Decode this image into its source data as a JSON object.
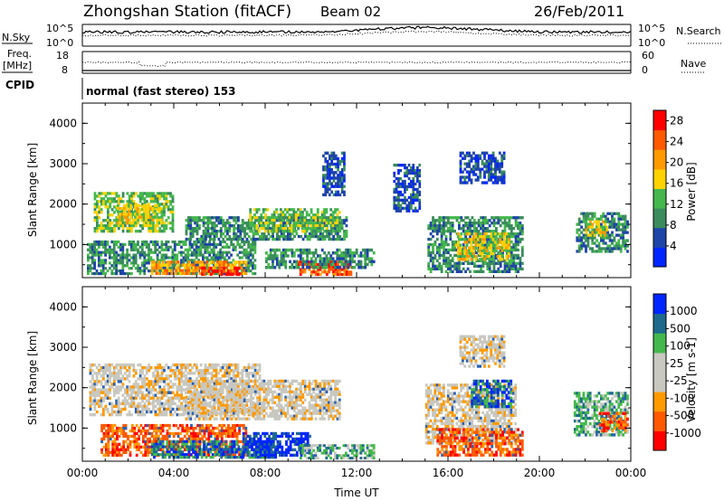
{
  "header": {
    "station": "Zhongshan Station (fitACF)",
    "beam": "Beam 02",
    "date": "26/Feb/2011"
  },
  "noise_panel": {
    "left_label": "N.Sky",
    "right_label": "N.Search",
    "left_ticks": [
      "10^5",
      "10^0"
    ],
    "right_ticks": [
      "10^5",
      "10^0"
    ]
  },
  "freq_panel": {
    "left_label_1": "Freq.",
    "left_label_2": "[MHz]",
    "right_label": "Nave",
    "left_ticks": [
      "18",
      "8"
    ],
    "right_ticks": [
      "60",
      "0"
    ]
  },
  "cpid": {
    "label": "CPID",
    "text": "normal (fast stereo) 153"
  },
  "colors": {
    "power": [
      "#0026ff",
      "#1e44a8",
      "#3a8c5c",
      "#44b84c",
      "#ffd200",
      "#ff9a00",
      "#ff5a00",
      "#ff0000"
    ],
    "velocity": [
      "#ff0000",
      "#ff5a00",
      "#ff9a00",
      "#c8c8c0",
      "#c8c8c0",
      "#44b84c",
      "#1e6a8c",
      "#0026ff"
    ],
    "velocity_extra": "#2a60b0"
  },
  "chart_data": [
    {
      "type": "heatmap",
      "quantity": "Power",
      "ylabel": "Slant Range [km]",
      "xlim": [
        0,
        24
      ],
      "ylim": [
        180,
        4500
      ],
      "y_ticks": [
        "1000",
        "2000",
        "3000",
        "4000"
      ],
      "colorbar": {
        "label": "Power [dB]",
        "ticks": [
          "4",
          "8",
          "12",
          "16",
          "20",
          "24",
          "28"
        ],
        "range": [
          0,
          30
        ]
      },
      "regions": [
        {
          "t0": 0.2,
          "t1": 7.6,
          "r0": 250,
          "r1": 1100,
          "level": 2
        },
        {
          "t0": 0.5,
          "t1": 4.0,
          "r0": 1300,
          "r1": 2300,
          "level": 3
        },
        {
          "t0": 1.5,
          "t1": 3.5,
          "r0": 1500,
          "r1": 2000,
          "level": 4
        },
        {
          "t0": 3.0,
          "t1": 7.2,
          "r0": 250,
          "r1": 600,
          "level": 5
        },
        {
          "t0": 5.2,
          "t1": 6.9,
          "r0": 230,
          "r1": 450,
          "level": 7
        },
        {
          "t0": 4.5,
          "t1": 11.6,
          "r0": 1100,
          "r1": 1700,
          "level": 2
        },
        {
          "t0": 7.3,
          "t1": 11.3,
          "r0": 1300,
          "r1": 1900,
          "level": 3
        },
        {
          "t0": 9.4,
          "t1": 11.8,
          "r0": 230,
          "r1": 600,
          "level": 6
        },
        {
          "t0": 8.0,
          "t1": 12.8,
          "r0": 400,
          "r1": 900,
          "level": 2
        },
        {
          "t0": 10.5,
          "t1": 11.5,
          "r0": 2200,
          "r1": 3300,
          "level": 1
        },
        {
          "t0": 15.1,
          "t1": 19.3,
          "r0": 300,
          "r1": 1700,
          "level": 2
        },
        {
          "t0": 16.3,
          "t1": 18.7,
          "r0": 600,
          "r1": 1300,
          "level": 4
        },
        {
          "t0": 16.5,
          "t1": 18.5,
          "r0": 2500,
          "r1": 3300,
          "level": 1
        },
        {
          "t0": 21.6,
          "t1": 23.9,
          "r0": 800,
          "r1": 1800,
          "level": 2
        },
        {
          "t0": 22.0,
          "t1": 23.0,
          "r0": 1200,
          "r1": 1600,
          "level": 4
        },
        {
          "t0": 13.6,
          "t1": 14.8,
          "r0": 1800,
          "r1": 3000,
          "level": 1
        }
      ]
    },
    {
      "type": "heatmap",
      "quantity": "Velocity",
      "ylabel": "Slant Range [km]",
      "xlabel": "Time UT",
      "xlim": [
        0,
        24
      ],
      "ylim": [
        180,
        4500
      ],
      "y_ticks": [
        "1000",
        "2000",
        "3000",
        "4000"
      ],
      "x_ticks": [
        "00:00",
        "04:00",
        "08:00",
        "12:00",
        "16:00",
        "20:00",
        "00:00"
      ],
      "colorbar": {
        "label": "Velocity [m s-1]",
        "ticks": [
          "1000",
          "500",
          "100",
          "25",
          "-25",
          "-100",
          "-500",
          "-1000"
        ]
      },
      "regions": [
        {
          "t0": 0.3,
          "t1": 7.8,
          "r0": 1300,
          "r1": 2600,
          "level": 3
        },
        {
          "t0": 4.5,
          "t1": 11.3,
          "r0": 1200,
          "r1": 2200,
          "level": 3
        },
        {
          "t0": 0.8,
          "t1": 7.2,
          "r0": 300,
          "r1": 1100,
          "level": 1
        },
        {
          "t0": 3.0,
          "t1": 8.5,
          "r0": 250,
          "r1": 700,
          "level": 6
        },
        {
          "t0": 7.0,
          "t1": 10.0,
          "r0": 300,
          "r1": 900,
          "level": 7
        },
        {
          "t0": 9.5,
          "t1": 12.8,
          "r0": 230,
          "r1": 600,
          "level": 5
        },
        {
          "t0": 15.0,
          "t1": 19.0,
          "r0": 600,
          "r1": 2100,
          "level": 3
        },
        {
          "t0": 15.5,
          "t1": 19.3,
          "r0": 300,
          "r1": 1000,
          "level": 1
        },
        {
          "t0": 17.0,
          "t1": 18.8,
          "r0": 1500,
          "r1": 2200,
          "level": 6
        },
        {
          "t0": 21.5,
          "t1": 23.9,
          "r0": 800,
          "r1": 1900,
          "level": 5
        },
        {
          "t0": 22.6,
          "t1": 23.9,
          "r0": 900,
          "r1": 1400,
          "level": 1
        },
        {
          "t0": 16.5,
          "t1": 18.5,
          "r0": 2500,
          "r1": 3300,
          "level": 3
        }
      ]
    }
  ]
}
